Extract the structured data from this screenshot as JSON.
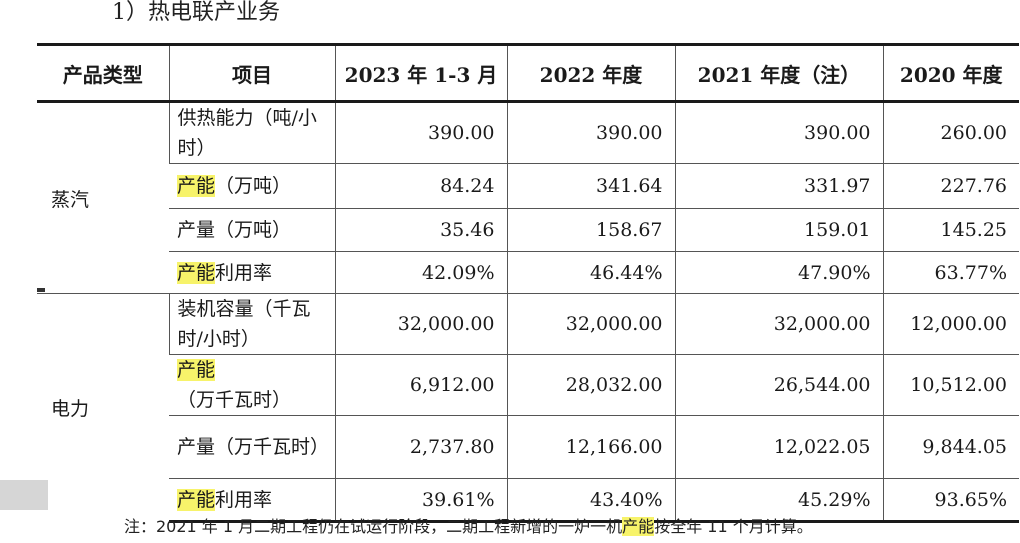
{
  "heading": "1）热电联产业务",
  "table": {
    "headers": [
      "产品类型",
      "项目",
      "2023 年 1-3 月",
      "2022 年度",
      "2021 年度（注）",
      "2020 年度"
    ],
    "groups": [
      {
        "category": "蒸汽",
        "rows": [
          {
            "item_pre": "",
            "item_rest": "供热能力（吨/小时）",
            "values": [
              "390.00",
              "390.00",
              "390.00",
              "260.00"
            ]
          },
          {
            "item_pre": "产能",
            "item_rest": "（万吨）",
            "values": [
              "84.24",
              "341.64",
              "331.97",
              "227.76"
            ]
          },
          {
            "item_pre": "",
            "item_rest": "产量（万吨）",
            "values": [
              "35.46",
              "158.67",
              "159.01",
              "145.25"
            ]
          },
          {
            "item_pre": "产能",
            "item_rest": "利用率",
            "values": [
              "42.09%",
              "46.44%",
              "47.90%",
              "63.77%"
            ]
          }
        ]
      },
      {
        "category": "电力",
        "rows": [
          {
            "item_pre": "",
            "item_rest": "装机容量（千瓦时/小时）",
            "values": [
              "32,000.00",
              "32,000.00",
              "32,000.00",
              "12,000.00"
            ]
          },
          {
            "item_pre": "产能",
            "item_rest": "（万千瓦时）",
            "values": [
              "6,912.00",
              "28,032.00",
              "26,544.00",
              "10,512.00"
            ]
          },
          {
            "item_pre": "",
            "item_rest": "产量（万千瓦时）",
            "values": [
              "2,737.80",
              "12,166.00",
              "12,022.05",
              "9,844.05"
            ]
          },
          {
            "item_pre": "产能",
            "item_rest": "利用率",
            "values": [
              "39.61%",
              "43.40%",
              "45.29%",
              "93.65%"
            ]
          }
        ]
      }
    ]
  },
  "note": {
    "before": "注：2021 年 1 月二期工程仍在试运行阶段，二期工程新增的一炉一机",
    "highlight": "产能",
    "after": "按全年 11 个月计算。"
  },
  "colors": {
    "highlight": "#f7f36a",
    "rule": "#1a1a1a"
  }
}
